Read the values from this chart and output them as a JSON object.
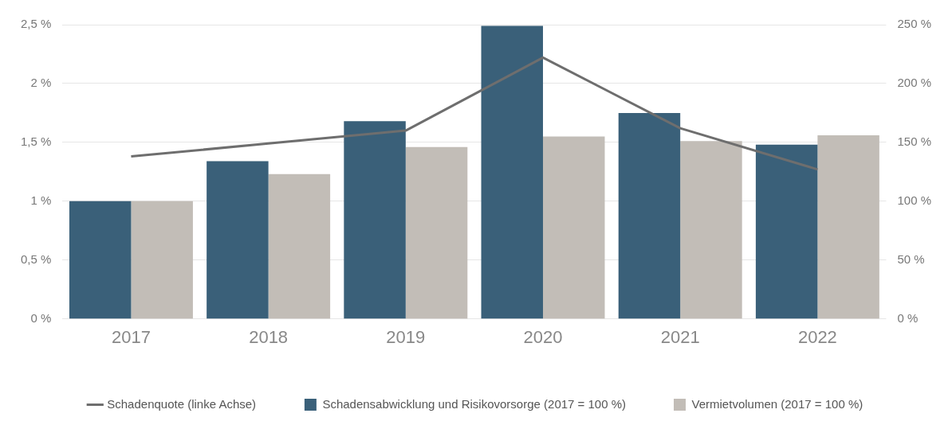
{
  "chart_data": {
    "type": "bar",
    "categories": [
      "2017",
      "2018",
      "2019",
      "2020",
      "2021",
      "2022"
    ],
    "series": [
      {
        "name": "Schadensabwicklung und Risikovorsorge (2017 = 100 %)",
        "color": "#3a6079",
        "values": [
          100,
          134,
          168,
          249,
          175,
          148
        ],
        "axis": "y2"
      },
      {
        "name": "Vermietvolumen (2017 = 100 %)",
        "color": "#c2bdb7",
        "values": [
          100,
          123,
          146,
          155,
          151,
          156
        ],
        "axis": "y2"
      },
      {
        "name": "Schadenquote (linke Achse)",
        "type": "line",
        "color": "#6e6e6e",
        "values": [
          1.38,
          1.49,
          1.6,
          2.22,
          1.62,
          1.27
        ],
        "axis": "y",
        "marker": "none"
      }
    ],
    "ylim": [
      0,
      2.5
    ],
    "yticks": [
      {
        "value": 0,
        "label": "0 %"
      },
      {
        "value": 0.5,
        "label": "0,5 %"
      },
      {
        "value": 1,
        "label": "1 %"
      },
      {
        "value": 1.5,
        "label": "1,5 %"
      },
      {
        "value": 2,
        "label": "2 %"
      },
      {
        "value": 2.5,
        "label": "2,5 %"
      }
    ],
    "y2lim": [
      0,
      250
    ],
    "y2ticks": [
      {
        "value": 0,
        "label": "0 %"
      },
      {
        "value": 50,
        "label": "50 %"
      },
      {
        "value": 100,
        "label": "100 %"
      },
      {
        "value": 150,
        "label": "150 %"
      },
      {
        "value": 200,
        "label": "200 %"
      },
      {
        "value": 250,
        "label": "250 %"
      }
    ],
    "grid": "y",
    "legend": "bottom"
  }
}
